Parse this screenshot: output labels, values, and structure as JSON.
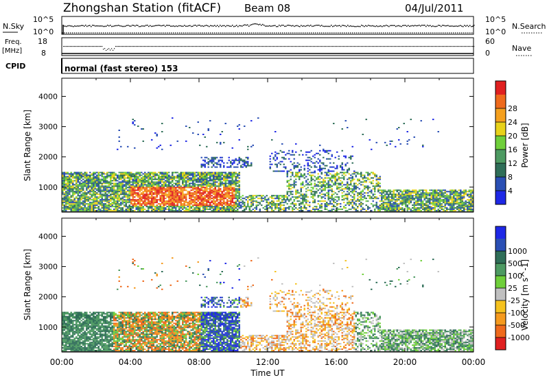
{
  "header": {
    "title": "Zhongshan Station (fitACF)",
    "beam": "Beam 08",
    "date": "04/Jul/2011",
    "mode": "normal (fast stereo) 153"
  },
  "strips": {
    "nsky_label": "N.Sky",
    "nsky_ticks": [
      "10^5",
      "10^0"
    ],
    "nsearch_label": "N.Search",
    "nsearch_ticks": [
      "10^5",
      "10^0"
    ],
    "freq_label_line1": "Freq.",
    "freq_label_line2": "[MHz]",
    "freq_ticks": [
      "18",
      "8"
    ],
    "nave_label": "Nave",
    "nave_ticks": [
      "60",
      "0"
    ],
    "cpid_label": "CPID"
  },
  "colors": {
    "power": [
      "#1e28e6",
      "#2a4fb4",
      "#2f6e58",
      "#4d9a62",
      "#6fcf3a",
      "#e8d21a",
      "#f5a01e",
      "#ef6a1c",
      "#e02020"
    ],
    "velocity": [
      "#1e28e6",
      "#2a4fb4",
      "#2f6e58",
      "#4d9a62",
      "#6fcf3a",
      "#c0c0c0",
      "#f5c21e",
      "#f59a1e",
      "#ef6a1c",
      "#e02020"
    ]
  },
  "chart_data": [
    {
      "type": "heatmap",
      "name": "power",
      "xlabel": "Time UT",
      "ylabel": "Slant Range [km]",
      "x_ticks": [
        "00:00",
        "04:00",
        "08:00",
        "12:00",
        "16:00",
        "20:00",
        "00:00"
      ],
      "y_ticks": [
        1000,
        2000,
        3000,
        4000
      ],
      "ylim": [
        180,
        4600
      ],
      "colorbar_label": "Power [dB]",
      "colorbar_ticks": [
        "4",
        "8",
        "12",
        "16",
        "20",
        "24",
        "28"
      ]
    },
    {
      "type": "heatmap",
      "name": "velocity",
      "xlabel": "Time UT",
      "ylabel": "Slant Range [km]",
      "x_ticks": [
        "00:00",
        "04:00",
        "08:00",
        "12:00",
        "16:00",
        "20:00",
        "00:00"
      ],
      "y_ticks": [
        1000,
        2000,
        3000,
        4000
      ],
      "ylim": [
        180,
        4600
      ],
      "colorbar_label": "Velocity [m s^-1]",
      "colorbar_ticks": [
        "1000",
        "500",
        "100",
        "25",
        "-25",
        "-100",
        "-500",
        "-1000"
      ]
    }
  ]
}
